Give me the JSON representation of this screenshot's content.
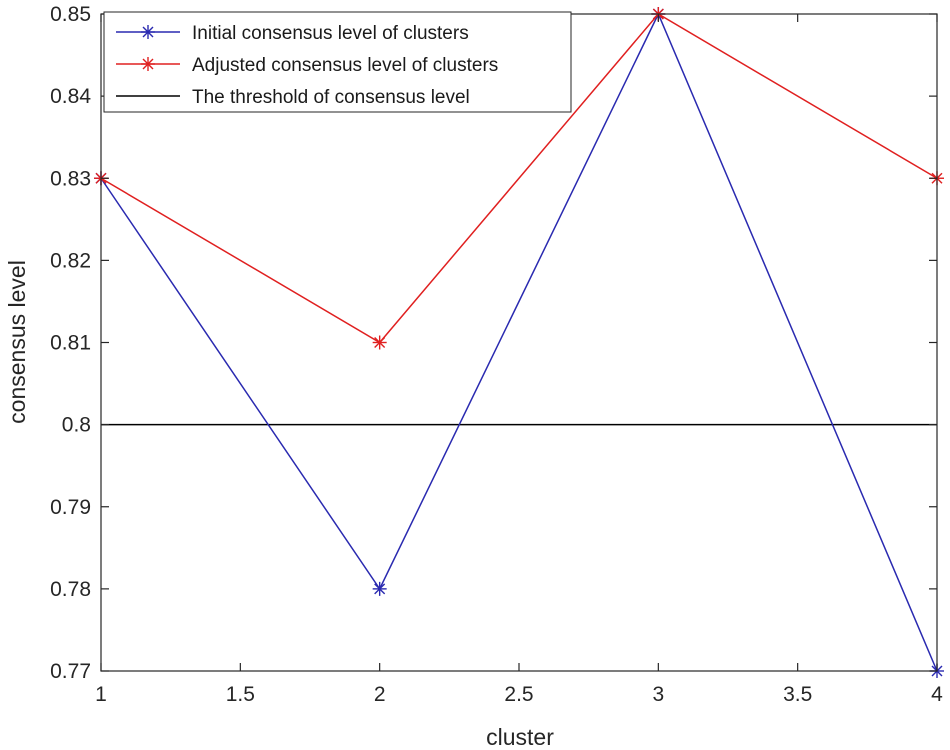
{
  "chart_data": {
    "type": "line",
    "xlabel": "cluster",
    "ylabel": "consensus level",
    "xlim": [
      1,
      4
    ],
    "ylim": [
      0.77,
      0.85
    ],
    "xticks": [
      "1",
      "1.5",
      "2",
      "2.5",
      "3",
      "3.5",
      "4"
    ],
    "yticks": [
      "0.77",
      "0.78",
      "0.79",
      "0.8",
      "0.81",
      "0.82",
      "0.83",
      "0.84",
      "0.85"
    ],
    "grid": false,
    "legend_position": "top-left",
    "x": [
      1,
      2,
      3,
      4
    ],
    "series": [
      {
        "name": "Initial consensus level of clusters",
        "color": "#2a2ab0",
        "marker": "asterisk",
        "values": [
          0.83,
          0.78,
          0.85,
          0.77
        ]
      },
      {
        "name": "Adjusted consensus level of clusters",
        "color": "#e02020",
        "marker": "asterisk",
        "values": [
          0.83,
          0.81,
          0.85,
          0.83
        ]
      },
      {
        "name": "The threshold of consensus level",
        "color": "#000000",
        "marker": "none",
        "values": [
          0.8,
          0.8,
          0.8,
          0.8
        ]
      }
    ]
  }
}
